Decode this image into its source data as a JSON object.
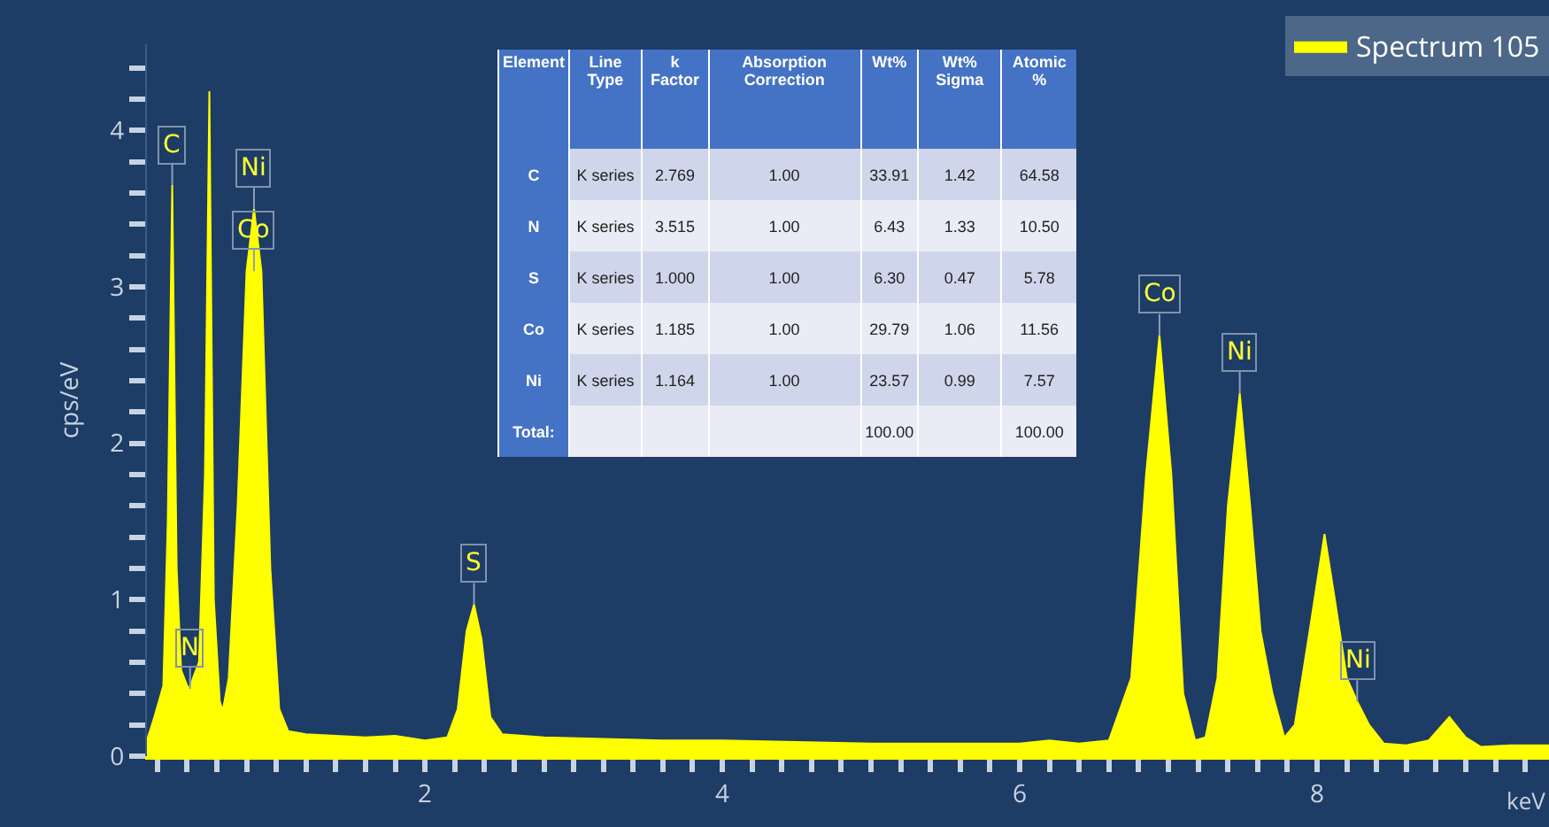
{
  "chart_data": {
    "type": "area",
    "ylabel": "cps/eV",
    "xlabel": "keV",
    "legend": "top right",
    "xlim": [
      0.13,
      9.56
    ],
    "ylim": [
      0,
      4.55
    ],
    "xticks": [
      {
        "value": 0.2,
        "label": null
      },
      {
        "value": 0.4,
        "label": null
      },
      {
        "value": 0.6,
        "label": null
      },
      {
        "value": 0.8,
        "label": null
      },
      {
        "value": 1,
        "label": null
      },
      {
        "value": 1.2,
        "label": null
      },
      {
        "value": 1.4,
        "label": null
      },
      {
        "value": 1.6,
        "label": null
      },
      {
        "value": 1.8,
        "label": null
      },
      2,
      {
        "value": 2.2,
        "label": null
      },
      {
        "value": 2.4,
        "label": null
      },
      {
        "value": 2.6,
        "label": null
      },
      {
        "value": 2.8,
        "label": null
      },
      {
        "value": 3,
        "label": null
      },
      {
        "value": 3.2,
        "label": null
      },
      {
        "value": 3.4,
        "label": null
      },
      {
        "value": 3.6,
        "label": null
      },
      {
        "value": 3.8,
        "label": null
      },
      4,
      {
        "value": 4.2,
        "label": null
      },
      {
        "value": 4.4,
        "label": null
      },
      {
        "value": 4.6,
        "label": null
      },
      {
        "value": 4.8,
        "label": null
      },
      {
        "value": 5,
        "label": null
      },
      {
        "value": 5.2,
        "label": null
      },
      {
        "value": 5.4,
        "label": null
      },
      {
        "value": 5.6,
        "label": null
      },
      {
        "value": 5.8,
        "label": null
      },
      6,
      {
        "value": 6.2,
        "label": null
      },
      {
        "value": 6.4,
        "label": null
      },
      {
        "value": 6.6,
        "label": null
      },
      {
        "value": 6.8,
        "label": null
      },
      {
        "value": 7,
        "label": null
      },
      {
        "value": 7.2,
        "label": null
      },
      {
        "value": 7.4,
        "label": null
      },
      {
        "value": 7.6,
        "label": null
      },
      {
        "value": 7.8,
        "label": null
      },
      8,
      {
        "value": 8.2,
        "label": null
      },
      {
        "value": 8.4,
        "label": null
      },
      {
        "value": 8.6,
        "label": null
      },
      {
        "value": 8.8,
        "label": null
      },
      {
        "value": 9,
        "label": null
      },
      {
        "value": 9.2,
        "label": null
      },
      {
        "value": 9.4,
        "label": null
      }
    ],
    "yticks": [
      0,
      {
        "value": 0.2,
        "label": null
      },
      {
        "value": 0.4,
        "label": null
      },
      {
        "value": 0.6,
        "label": null
      },
      {
        "value": 0.8,
        "label": null
      },
      1,
      {
        "value": 1.2,
        "label": null
      },
      {
        "value": 1.4,
        "label": null
      },
      {
        "value": 1.6,
        "label": null
      },
      {
        "value": 1.8,
        "label": null
      },
      2,
      {
        "value": 2.2,
        "label": null
      },
      {
        "value": 2.4,
        "label": null
      },
      {
        "value": 2.6,
        "label": null
      },
      {
        "value": 2.8,
        "label": null
      },
      3,
      {
        "value": 3.2,
        "label": null
      },
      {
        "value": 3.4,
        "label": null
      },
      {
        "value": 3.6,
        "label": null
      },
      {
        "value": 3.8,
        "label": null
      },
      4,
      {
        "value": 4.2,
        "label": null
      },
      {
        "value": 4.4,
        "label": null
      }
    ],
    "series": [
      {
        "name": "Spectrum 105",
        "color": "#ffff00",
        "x": [
          0.13,
          0.18,
          0.24,
          0.27,
          0.3,
          0.33,
          0.36,
          0.4,
          0.42,
          0.44,
          0.48,
          0.52,
          0.55,
          0.58,
          0.62,
          0.64,
          0.68,
          0.74,
          0.8,
          0.85,
          0.9,
          0.96,
          1.02,
          1.08,
          1.2,
          1.4,
          1.6,
          1.8,
          2.0,
          2.15,
          2.22,
          2.28,
          2.33,
          2.38,
          2.44,
          2.52,
          2.8,
          3.2,
          3.6,
          4.0,
          4.5,
          5.0,
          5.5,
          6.0,
          6.2,
          6.4,
          6.6,
          6.75,
          6.85,
          6.94,
          7.02,
          7.1,
          7.18,
          7.25,
          7.33,
          7.4,
          7.48,
          7.55,
          7.62,
          7.7,
          7.78,
          7.85,
          7.95,
          8.05,
          8.12,
          8.2,
          8.27,
          8.35,
          8.45,
          8.6,
          8.75,
          8.89,
          9.0,
          9.1,
          9.3,
          9.56
        ],
        "values": [
          0.1,
          0.25,
          0.45,
          1.5,
          3.65,
          1.2,
          0.55,
          0.45,
          0.43,
          0.5,
          0.6,
          1.8,
          4.25,
          1.0,
          0.35,
          0.29,
          0.5,
          1.6,
          3.1,
          3.5,
          3.1,
          1.2,
          0.3,
          0.16,
          0.14,
          0.13,
          0.12,
          0.13,
          0.1,
          0.12,
          0.3,
          0.8,
          0.97,
          0.75,
          0.25,
          0.14,
          0.12,
          0.11,
          0.1,
          0.1,
          0.09,
          0.08,
          0.08,
          0.08,
          0.1,
          0.08,
          0.1,
          0.5,
          1.8,
          2.69,
          1.8,
          0.4,
          0.1,
          0.12,
          0.5,
          1.6,
          2.32,
          1.6,
          0.8,
          0.4,
          0.12,
          0.2,
          0.8,
          1.42,
          1.0,
          0.5,
          0.35,
          0.2,
          0.08,
          0.07,
          0.1,
          0.25,
          0.12,
          0.06,
          0.07,
          0.07
        ]
      }
    ],
    "annotations": [
      {
        "text": "C",
        "x": 0.3,
        "y": 3.65
      },
      {
        "text": "N",
        "x": 0.42,
        "y": 0.43
      },
      {
        "text": "Ni",
        "x": 0.85,
        "y": 3.5
      },
      {
        "text": "Co",
        "x": 0.85,
        "y": 3.1
      },
      {
        "text": "S",
        "x": 2.33,
        "y": 0.97
      },
      {
        "text": "Co",
        "x": 6.94,
        "y": 2.69
      },
      {
        "text": "Ni",
        "x": 7.48,
        "y": 2.32
      },
      {
        "text": "Ni",
        "x": 8.27,
        "y": 0.35
      },
      "Element",
      "Line Type",
      "k Factor",
      "Absorption Correction",
      "Wt%",
      "Wt% Sigma",
      "Atomic %",
      "C",
      "K series",
      "2.769",
      "1.00",
      "33.91",
      "1.42",
      "64.58",
      "N",
      "K series",
      "3.515",
      "1.00",
      "6.43",
      "1.33",
      "10.50",
      "S",
      "K series",
      "1.000",
      "1.00",
      "6.30",
      "0.47",
      "5.78",
      "Co",
      "K series",
      "1.185",
      "1.00",
      "29.79",
      "1.06",
      "11.56",
      "Ni",
      "K series",
      "1.164",
      "1.00",
      "23.57",
      "0.99",
      "7.57",
      "Total:",
      "100.00",
      "100.00"
    ]
  }
}
